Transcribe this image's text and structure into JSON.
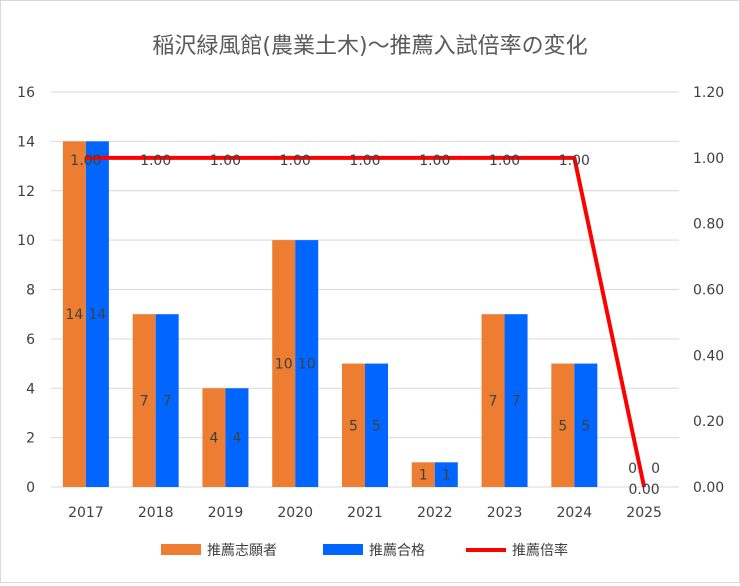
{
  "chart_data": {
    "type": "bar",
    "title": "稲沢緑風館(農業土木)～推薦入試倍率の変化",
    "categories": [
      "2017",
      "2018",
      "2019",
      "2020",
      "2021",
      "2022",
      "2023",
      "2024",
      "2025"
    ],
    "series": [
      {
        "name": "推薦志願者",
        "kind": "bar",
        "axis": "left",
        "color": "#ED7D31",
        "values": [
          14,
          7,
          4,
          10,
          5,
          1,
          7,
          5,
          0
        ]
      },
      {
        "name": "推薦合格",
        "kind": "bar",
        "axis": "left",
        "color": "#0066FF",
        "values": [
          14,
          7,
          4,
          10,
          5,
          1,
          7,
          5,
          0
        ]
      },
      {
        "name": "推薦倍率",
        "kind": "line",
        "axis": "right",
        "color": "#FF0000",
        "values": [
          1.0,
          1.0,
          1.0,
          1.0,
          1.0,
          1.0,
          1.0,
          1.0,
          0.0
        ]
      }
    ],
    "ylim_left": [
      0,
      16
    ],
    "yticks_left": [
      "0",
      "2",
      "4",
      "6",
      "8",
      "10",
      "12",
      "14",
      "16"
    ],
    "ylim_right": [
      0,
      1.2
    ],
    "yticks_right": [
      "0.00",
      "0.20",
      "0.40",
      "0.60",
      "0.80",
      "1.00",
      "1.20"
    ],
    "grid": true,
    "legend_position": "bottom"
  }
}
